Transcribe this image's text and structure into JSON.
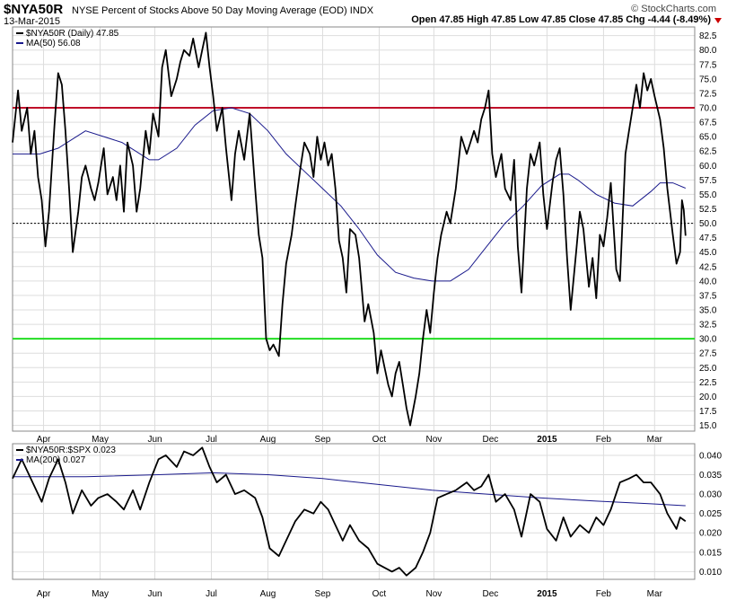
{
  "header": {
    "symbol": "$NYA50R",
    "description": "NYSE Percent of Stocks Above 50 Day Moving Average (EOD)  INDX",
    "date": "13-Mar-2015",
    "brand": "© StockCharts.com",
    "ohlc": "Open 47.85   High 47.85   Low 47.85   Close 47.85   Chg -4.44 (-8.49%)"
  },
  "colors": {
    "price": "#000000",
    "ma": "#1a1a8c",
    "overbought": "#c0102a",
    "oversold": "#22dd22",
    "grid": "#dddddd",
    "dotted": "#000000",
    "down_arrow": "#cc0000"
  },
  "chart_data": [
    {
      "type": "line",
      "legend": {
        "series_label": "$NYA50R (Daily) 47.85",
        "ma_label": "MA(50) 56.08",
        "placement": "top-left"
      },
      "x_tick_labels": [
        "Apr",
        "May",
        "Jun",
        "Jul",
        "Aug",
        "Sep",
        "Oct",
        "Nov",
        "Dec",
        "2015",
        "Feb",
        "Mar"
      ],
      "x_tick_days": [
        17,
        48,
        78,
        109,
        140,
        170,
        201,
        231,
        262,
        293,
        324,
        352
      ],
      "x_range_days": [
        0,
        374
      ],
      "ylim": [
        14,
        84
      ],
      "yticks": [
        15.0,
        17.5,
        20.0,
        22.5,
        25.0,
        27.5,
        30.0,
        32.5,
        35.0,
        37.5,
        40.0,
        42.5,
        45.0,
        47.5,
        50.0,
        52.5,
        55.0,
        57.5,
        60.0,
        62.5,
        65.0,
        67.5,
        70.0,
        72.5,
        75.0,
        77.5,
        80.0,
        82.5
      ],
      "ytick_labels": [
        "15.0",
        "17.5",
        "20.0",
        "22.5",
        "25.0",
        "27.5",
        "30.0",
        "32.5",
        "35.0",
        "37.5",
        "40.0",
        "42.5",
        "45.0",
        "47.5",
        "50.0",
        "52.5",
        "55.0",
        "57.5",
        "60.0",
        "62.5",
        "65.0",
        "67.5",
        "70.0",
        "72.5",
        "75.0",
        "77.5",
        "80.0",
        "82.5"
      ],
      "reference_lines": [
        {
          "value": 70,
          "style": "overbought"
        },
        {
          "value": 30,
          "style": "oversold"
        },
        {
          "value": 50,
          "style": "dotted"
        }
      ],
      "grid": true,
      "series": [
        {
          "name": "$NYA50R (Daily)",
          "x": [
            0,
            3,
            5,
            8,
            10,
            12,
            14,
            16,
            18,
            20,
            23,
            25,
            27,
            29,
            31,
            33,
            36,
            38,
            40,
            43,
            45,
            47,
            50,
            52,
            55,
            57,
            59,
            61,
            63,
            66,
            68,
            70,
            73,
            75,
            77,
            80,
            82,
            84,
            87,
            90,
            92,
            94,
            97,
            99,
            102,
            104,
            106,
            108,
            110,
            112,
            115,
            117,
            120,
            122,
            124,
            127,
            130,
            133,
            135,
            137,
            139,
            141,
            143,
            146,
            148,
            150,
            153,
            155,
            158,
            160,
            163,
            165,
            167,
            169,
            171,
            173,
            175,
            177,
            179,
            181,
            183,
            185,
            188,
            190,
            193,
            195,
            198,
            200,
            202,
            204,
            206,
            208,
            210,
            212,
            214,
            216,
            218,
            221,
            223,
            225,
            227,
            229,
            231,
            233,
            235,
            238,
            240,
            243,
            246,
            249,
            251,
            253,
            255,
            257,
            259,
            261,
            263,
            265,
            268,
            270,
            273,
            275,
            277,
            279,
            282,
            284,
            286,
            289,
            291,
            293,
            296,
            298,
            300,
            302,
            304,
            306,
            309,
            311,
            313,
            316,
            318,
            320,
            322,
            324,
            326,
            328,
            331,
            333,
            336,
            338,
            340,
            342,
            344,
            346,
            348,
            350,
            352,
            355,
            357,
            359,
            362,
            364,
            366,
            367,
            368,
            369
          ],
          "values": [
            64.0,
            73.0,
            66.0,
            70.0,
            62.0,
            66.0,
            58.0,
            54.0,
            46.0,
            52.0,
            67.0,
            76.0,
            74.0,
            66.0,
            56.0,
            45.0,
            52.0,
            58.0,
            60.0,
            56.0,
            54.0,
            57.0,
            63.0,
            55.0,
            58.0,
            54.0,
            60.0,
            52.0,
            64.0,
            60.0,
            52.0,
            56.0,
            66.0,
            62.0,
            69.0,
            65.0,
            77.0,
            80.0,
            72.0,
            75.0,
            78.0,
            80.0,
            79.0,
            82.0,
            77.0,
            80.0,
            83.0,
            77.0,
            72.0,
            66.0,
            70.0,
            63.0,
            54.0,
            62.0,
            66.0,
            61.0,
            69.0,
            56.0,
            48.0,
            44.0,
            30.0,
            28.0,
            29.0,
            27.0,
            36.0,
            43.0,
            48.0,
            53.0,
            60.0,
            64.0,
            62.0,
            58.0,
            65.0,
            61.0,
            64.0,
            60.0,
            62.0,
            56.0,
            47.0,
            44.0,
            38.0,
            49.0,
            48.0,
            44.0,
            33.0,
            36.0,
            31.0,
            24.0,
            28.0,
            25.0,
            22.0,
            20.0,
            24.0,
            26.0,
            22.0,
            18.0,
            15.0,
            20.0,
            24.0,
            30.0,
            35.0,
            31.0,
            38.0,
            44.0,
            48.0,
            52.0,
            50.0,
            56.0,
            65.0,
            62.0,
            64.0,
            66.0,
            64.0,
            68.0,
            70.0,
            73.0,
            62.0,
            58.0,
            62.0,
            56.0,
            54.0,
            61.0,
            46.0,
            38.0,
            56.0,
            62.0,
            60.0,
            64.0,
            55.0,
            49.0,
            57.0,
            61.0,
            63.0,
            55.0,
            44.0,
            35.0,
            45.0,
            52.0,
            49.0,
            39.0,
            44.0,
            37.0,
            48.0,
            46.0,
            51.0,
            57.0,
            42.0,
            40.0,
            62.0,
            66.0,
            70.0,
            74.0,
            70.0,
            76.0,
            73.0,
            75.0,
            72.0,
            68.0,
            63.0,
            56.0,
            48.0,
            43.0,
            45.0,
            54.0,
            52.3,
            47.85
          ]
        },
        {
          "name": "MA(50)",
          "x": [
            0,
            15,
            25,
            40,
            50,
            60,
            70,
            75,
            80,
            90,
            100,
            110,
            120,
            130,
            140,
            150,
            160,
            170,
            180,
            190,
            200,
            210,
            220,
            230,
            240,
            250,
            255,
            260,
            265,
            270,
            280,
            290,
            300,
            305,
            310,
            320,
            330,
            340,
            350,
            355,
            362,
            369
          ],
          "values": [
            62.0,
            62.0,
            63.0,
            66.0,
            65.0,
            64.0,
            62.0,
            61.0,
            61.0,
            63.0,
            67.0,
            69.5,
            70.0,
            69.0,
            66.0,
            62.0,
            59.0,
            56.0,
            53.0,
            49.0,
            44.5,
            41.5,
            40.5,
            40.0,
            40.0,
            42.0,
            44.0,
            46.0,
            48.0,
            50.0,
            53.0,
            56.5,
            58.5,
            58.5,
            57.5,
            55.0,
            53.5,
            53.0,
            55.5,
            57.0,
            57.0,
            56.08
          ]
        }
      ]
    },
    {
      "type": "line",
      "legend": {
        "series_label": "$NYA50R:$SPX 0.023",
        "ma_label": "MA(200) 0.027",
        "placement": "top-left"
      },
      "x_tick_labels": [
        "Apr",
        "May",
        "Jun",
        "Jul",
        "Aug",
        "Sep",
        "Oct",
        "Nov",
        "Dec",
        "2015",
        "Feb",
        "Mar"
      ],
      "x_tick_days": [
        17,
        48,
        78,
        109,
        140,
        170,
        201,
        231,
        262,
        293,
        324,
        352
      ],
      "x_range_days": [
        0,
        374
      ],
      "ylim": [
        0.008,
        0.043
      ],
      "yticks": [
        0.01,
        0.015,
        0.02,
        0.025,
        0.03,
        0.035,
        0.04
      ],
      "ytick_labels": [
        "0.010",
        "0.015",
        "0.020",
        "0.025",
        "0.030",
        "0.035",
        "0.040"
      ],
      "grid": true,
      "series": [
        {
          "name": "$NYA50R:$SPX",
          "x": [
            0,
            5,
            10,
            16,
            20,
            25,
            29,
            33,
            38,
            43,
            47,
            52,
            57,
            61,
            66,
            70,
            75,
            80,
            84,
            90,
            94,
            99,
            104,
            108,
            112,
            117,
            122,
            127,
            133,
            137,
            141,
            146,
            150,
            155,
            160,
            165,
            169,
            173,
            177,
            181,
            185,
            190,
            195,
            200,
            204,
            208,
            212,
            216,
            221,
            225,
            229,
            233,
            238,
            243,
            249,
            253,
            257,
            261,
            265,
            270,
            275,
            279,
            284,
            289,
            293,
            298,
            302,
            306,
            311,
            316,
            320,
            324,
            328,
            333,
            338,
            342,
            346,
            350,
            355,
            359,
            364,
            366,
            369
          ],
          "values": [
            0.034,
            0.039,
            0.034,
            0.028,
            0.034,
            0.039,
            0.033,
            0.025,
            0.031,
            0.027,
            0.029,
            0.03,
            0.028,
            0.026,
            0.031,
            0.026,
            0.033,
            0.039,
            0.04,
            0.037,
            0.041,
            0.04,
            0.042,
            0.037,
            0.033,
            0.035,
            0.03,
            0.031,
            0.029,
            0.024,
            0.016,
            0.014,
            0.018,
            0.023,
            0.026,
            0.025,
            0.028,
            0.026,
            0.022,
            0.018,
            0.022,
            0.018,
            0.016,
            0.012,
            0.011,
            0.01,
            0.011,
            0.009,
            0.011,
            0.015,
            0.02,
            0.029,
            0.03,
            0.031,
            0.033,
            0.031,
            0.032,
            0.035,
            0.028,
            0.03,
            0.026,
            0.019,
            0.03,
            0.028,
            0.021,
            0.018,
            0.024,
            0.019,
            0.022,
            0.02,
            0.024,
            0.022,
            0.026,
            0.033,
            0.034,
            0.035,
            0.033,
            0.033,
            0.03,
            0.025,
            0.021,
            0.024,
            0.023
          ]
        },
        {
          "name": "MA(200)",
          "x": [
            0,
            40,
            80,
            110,
            140,
            170,
            200,
            230,
            260,
            290,
            320,
            350,
            369
          ],
          "values": [
            0.0345,
            0.0345,
            0.035,
            0.0355,
            0.035,
            0.034,
            0.0325,
            0.031,
            0.03,
            0.029,
            0.0282,
            0.0275,
            0.027
          ]
        }
      ]
    }
  ]
}
